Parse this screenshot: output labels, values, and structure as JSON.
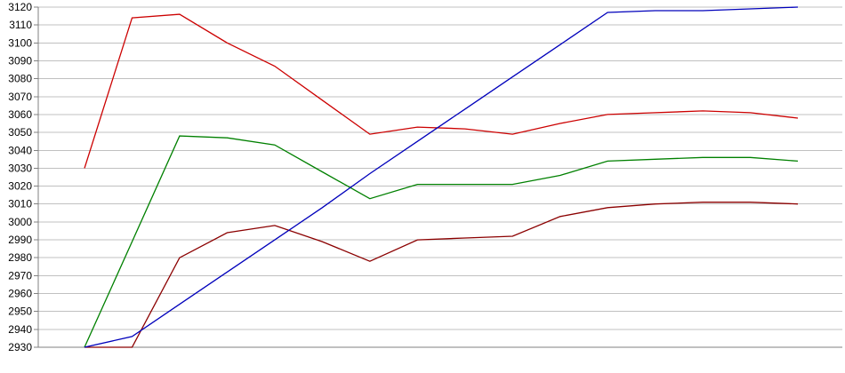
{
  "chart_data": {
    "type": "line",
    "title": "",
    "xlabel": "",
    "ylabel": "",
    "legend": "none",
    "grid": "horizontal",
    "x_count": 16,
    "ylim": [
      2930,
      3120
    ],
    "y_tick_step": 10,
    "y_tick_labels": [
      "3120",
      "3110",
      "3100",
      "3090",
      "3080",
      "3070",
      "3060",
      "3050",
      "3040",
      "3030",
      "3020",
      "3010",
      "3000",
      "2990",
      "2980",
      "2970",
      "2960",
      "2950",
      "2940",
      "2930"
    ],
    "series": [
      {
        "name": "red-series",
        "color": "#cc0000",
        "values": [
          3030,
          3114,
          3116,
          3100,
          3087,
          3068,
          3049,
          3053,
          3052,
          3049,
          3055,
          3060,
          3061,
          3062,
          3061,
          3058
        ]
      },
      {
        "name": "dark-red-series",
        "color": "#8b0000",
        "values": [
          2930,
          2930,
          2980,
          2994,
          2998,
          2989,
          2978,
          2990,
          2991,
          2992,
          3003,
          3008,
          3010,
          3011,
          3011,
          3010
        ]
      },
      {
        "name": "green-series",
        "color": "#008000",
        "values": [
          2930,
          2989,
          3048,
          3047,
          3043,
          3028,
          3013,
          3021,
          3021,
          3021,
          3026,
          3034,
          3035,
          3036,
          3036,
          3034
        ]
      },
      {
        "name": "blue-series",
        "color": "#0000bb",
        "values": [
          2930,
          2936,
          2954,
          2972,
          2990,
          3008,
          3027,
          3045,
          3063,
          3081,
          3099,
          3117,
          3118,
          3118,
          3119,
          3120
        ]
      }
    ],
    "colors": {
      "background": "#ffffff",
      "gridline": "#c0c0c0",
      "axis": "#808080",
      "tick_label": "#000000"
    }
  }
}
